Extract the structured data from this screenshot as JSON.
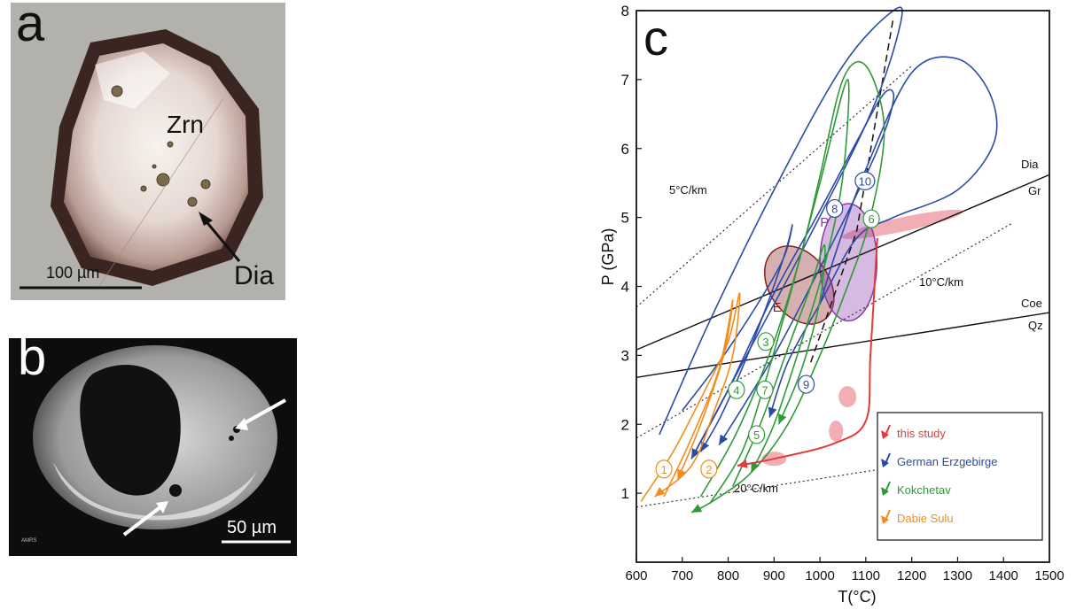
{
  "panel_a": {
    "label": "a",
    "mineral_label": "Zrn",
    "inclusion_label": "Dia",
    "scale_label": "100 µm"
  },
  "panel_b": {
    "label": "b",
    "scale_label": "50 µm",
    "corner_text": "AMRS"
  },
  "panel_c": {
    "label": "c",
    "colors": {
      "this_study": "#e43a3a",
      "german_erzgebirge": "#2a4aa8",
      "kokchetav": "#2f9a3a",
      "dabie_sulu": "#f28c1c"
    },
    "chart_data": {
      "type": "line",
      "xlabel": "T(°C)",
      "ylabel": "P (GPa)",
      "xlim": [
        600,
        1500
      ],
      "ylim": [
        0,
        8
      ],
      "xticks": [
        600,
        700,
        800,
        900,
        1000,
        1100,
        1200,
        1300,
        1400,
        1500
      ],
      "yticks": [
        1,
        2,
        3,
        4,
        5,
        6,
        7,
        8
      ],
      "grid": false,
      "legend_position": "bottom-right",
      "legend": [
        {
          "name": "this study",
          "color_key": "this_study"
        },
        {
          "name": "German Erzgebirge",
          "color_key": "german_erzgebirge"
        },
        {
          "name": "Kokchetav",
          "color_key": "kokchetav"
        },
        {
          "name": "Dabie Sulu",
          "color_key": "dabie_sulu"
        }
      ],
      "phase_boundaries": [
        {
          "upper": "Dia",
          "lower": "Gr",
          "points": [
            [
              600,
              3.08
            ],
            [
              1500,
              5.62
            ]
          ]
        },
        {
          "upper": "Coe",
          "lower": "Qz",
          "points": [
            [
              600,
              2.68
            ],
            [
              1500,
              3.62
            ]
          ]
        }
      ],
      "geotherms": [
        {
          "label": "5°C/km",
          "points": [
            [
              600,
              3.7
            ],
            [
              1200,
              7.2
            ]
          ]
        },
        {
          "label": "10°C/km",
          "points": [
            [
              600,
              1.8
            ],
            [
              1420,
              4.92
            ]
          ]
        },
        {
          "label": "20°C/km",
          "points": [
            [
              600,
              0.8
            ],
            [
              1280,
              1.5
            ]
          ]
        }
      ],
      "fields": [
        {
          "label": "E",
          "cx": 955,
          "cy": 4.02,
          "rx": 65,
          "ry": 0.62,
          "rotate": -35,
          "color": "#8a1c1c"
        },
        {
          "label": "P",
          "cx": 1062,
          "cy": 4.35,
          "rx": 62,
          "ry": 0.85,
          "rotate": 0,
          "color": "#8a3aa8"
        }
      ],
      "series": [
        {
          "name": "German Erzgebirge",
          "color_key": "german_erzgebirge",
          "paths": [
            [
              [
                650,
                1.85
              ],
              [
                760,
                3.5
              ],
              [
                900,
                5.4
              ],
              [
                1050,
                7.2
              ],
              [
                1160,
                8.0
              ],
              [
                1175,
                7.8
              ],
              [
                1110,
                6.5
              ],
              [
                960,
                4.5
              ],
              [
                840,
                3.0
              ],
              [
                720,
                1.5
              ]
            ],
            [
              [
                720,
                1.5
              ],
              [
                800,
                2.5
              ],
              [
                900,
                3.9
              ],
              [
                1000,
                5.1
              ],
              [
                1080,
                6.1
              ],
              [
                1140,
                6.8
              ],
              [
                1160,
                6.7
              ],
              [
                1120,
                5.9
              ],
              [
                1010,
                4.4
              ],
              [
                900,
                3.0
              ],
              [
                780,
                1.7
              ]
            ],
            [
              [
                1000,
                3.75
              ],
              [
                1040,
                4.6
              ],
              [
                1100,
                5.7
              ],
              [
                1200,
                7.1
              ],
              [
                1300,
                7.3
              ],
              [
                1370,
                6.8
              ],
              [
                1380,
                6.1
              ],
              [
                1300,
                5.4
              ],
              [
                1160,
                5.0
              ],
              [
                1080,
                4.7
              ],
              [
                1000,
                3.75
              ],
              [
                930,
                2.9
              ],
              [
                890,
                2.1
              ]
            ],
            [
              [
                700,
                2.2
              ],
              [
                780,
                2.9
              ],
              [
                860,
                3.7
              ],
              [
                920,
                4.4
              ],
              [
                940,
                4.9
              ],
              [
                920,
                4.4
              ],
              [
                860,
                3.3
              ],
              [
                790,
                2.2
              ],
              [
                740,
                1.6
              ]
            ]
          ]
        },
        {
          "name": "Kokchetav",
          "color_key": "kokchetav",
          "paths": [
            [
              [
                740,
                0.95
              ],
              [
                820,
                1.9
              ],
              [
                900,
                3.2
              ],
              [
                960,
                4.5
              ],
              [
                1000,
                5.6
              ],
              [
                1050,
                7.0
              ],
              [
                1100,
                7.2
              ],
              [
                1140,
                6.3
              ],
              [
                1110,
                5.0
              ],
              [
                1060,
                4.0
              ],
              [
                1000,
                3.0
              ],
              [
                930,
                2.0
              ],
              [
                850,
                1.3
              ],
              [
                770,
                0.9
              ],
              [
                720,
                0.72
              ]
            ],
            [
              [
                760,
                0.85
              ],
              [
                830,
                1.6
              ],
              [
                880,
                2.6
              ],
              [
                940,
                4.0
              ],
              [
                1000,
                5.5
              ],
              [
                1060,
                7.0
              ],
              [
                1050,
                5.6
              ],
              [
                1010,
                4.3
              ],
              [
                960,
                3.2
              ],
              [
                900,
                2.0
              ],
              [
                850,
                1.3
              ]
            ],
            [
              [
                810,
                1.1
              ],
              [
                870,
                2.0
              ],
              [
                930,
                3.1
              ],
              [
                980,
                4.0
              ],
              [
                1010,
                4.6
              ],
              [
                1000,
                3.8
              ],
              [
                960,
                2.8
              ],
              [
                910,
                2.0
              ]
            ]
          ]
        },
        {
          "name": "Dabie Sulu",
          "color_key": "dabie_sulu",
          "paths": [
            [
              [
                610,
                0.88
              ],
              [
                680,
                1.6
              ],
              [
                750,
                2.5
              ],
              [
                800,
                3.2
              ],
              [
                825,
                3.9
              ],
              [
                810,
                3.0
              ],
              [
                770,
                2.2
              ],
              [
                720,
                1.4
              ],
              [
                640,
                0.95
              ]
            ],
            [
              [
                660,
                0.95
              ],
              [
                720,
                1.8
              ],
              [
                780,
                2.8
              ],
              [
                810,
                3.8
              ],
              [
                790,
                3.0
              ],
              [
                740,
                2.0
              ],
              [
                690,
                1.2
              ]
            ]
          ]
        },
        {
          "name": "this study",
          "color_key": "this_study",
          "paths": [
            [
              [
                1125,
                4.7
              ],
              [
                1110,
                3.0
              ],
              [
                1100,
                2.05
              ],
              [
                1030,
                1.72
              ],
              [
                900,
                1.5
              ],
              [
                820,
                1.4
              ]
            ]
          ]
        }
      ],
      "path_labels": [
        {
          "text": "1",
          "x": 660,
          "y": 1.35,
          "color_key": "dabie_sulu"
        },
        {
          "text": "2",
          "x": 758,
          "y": 1.35,
          "color_key": "dabie_sulu"
        },
        {
          "text": "3",
          "x": 882,
          "y": 3.2,
          "color_key": "kokchetav"
        },
        {
          "text": "4",
          "x": 818,
          "y": 2.5,
          "color_key": "kokchetav"
        },
        {
          "text": "5",
          "x": 862,
          "y": 1.85,
          "color_key": "kokchetav"
        },
        {
          "text": "6",
          "x": 1112,
          "y": 4.98,
          "color_key": "kokchetav"
        },
        {
          "text": "7",
          "x": 880,
          "y": 2.5,
          "color_key": "kokchetav"
        },
        {
          "text": "8",
          "x": 1032,
          "y": 5.13,
          "color_key": "german_erzgebirge"
        },
        {
          "text": "9",
          "x": 970,
          "y": 2.58,
          "color_key": "german_erzgebirge"
        },
        {
          "text": "10",
          "x": 1098,
          "y": 5.53,
          "color_key": "german_erzgebirge"
        }
      ]
    }
  }
}
